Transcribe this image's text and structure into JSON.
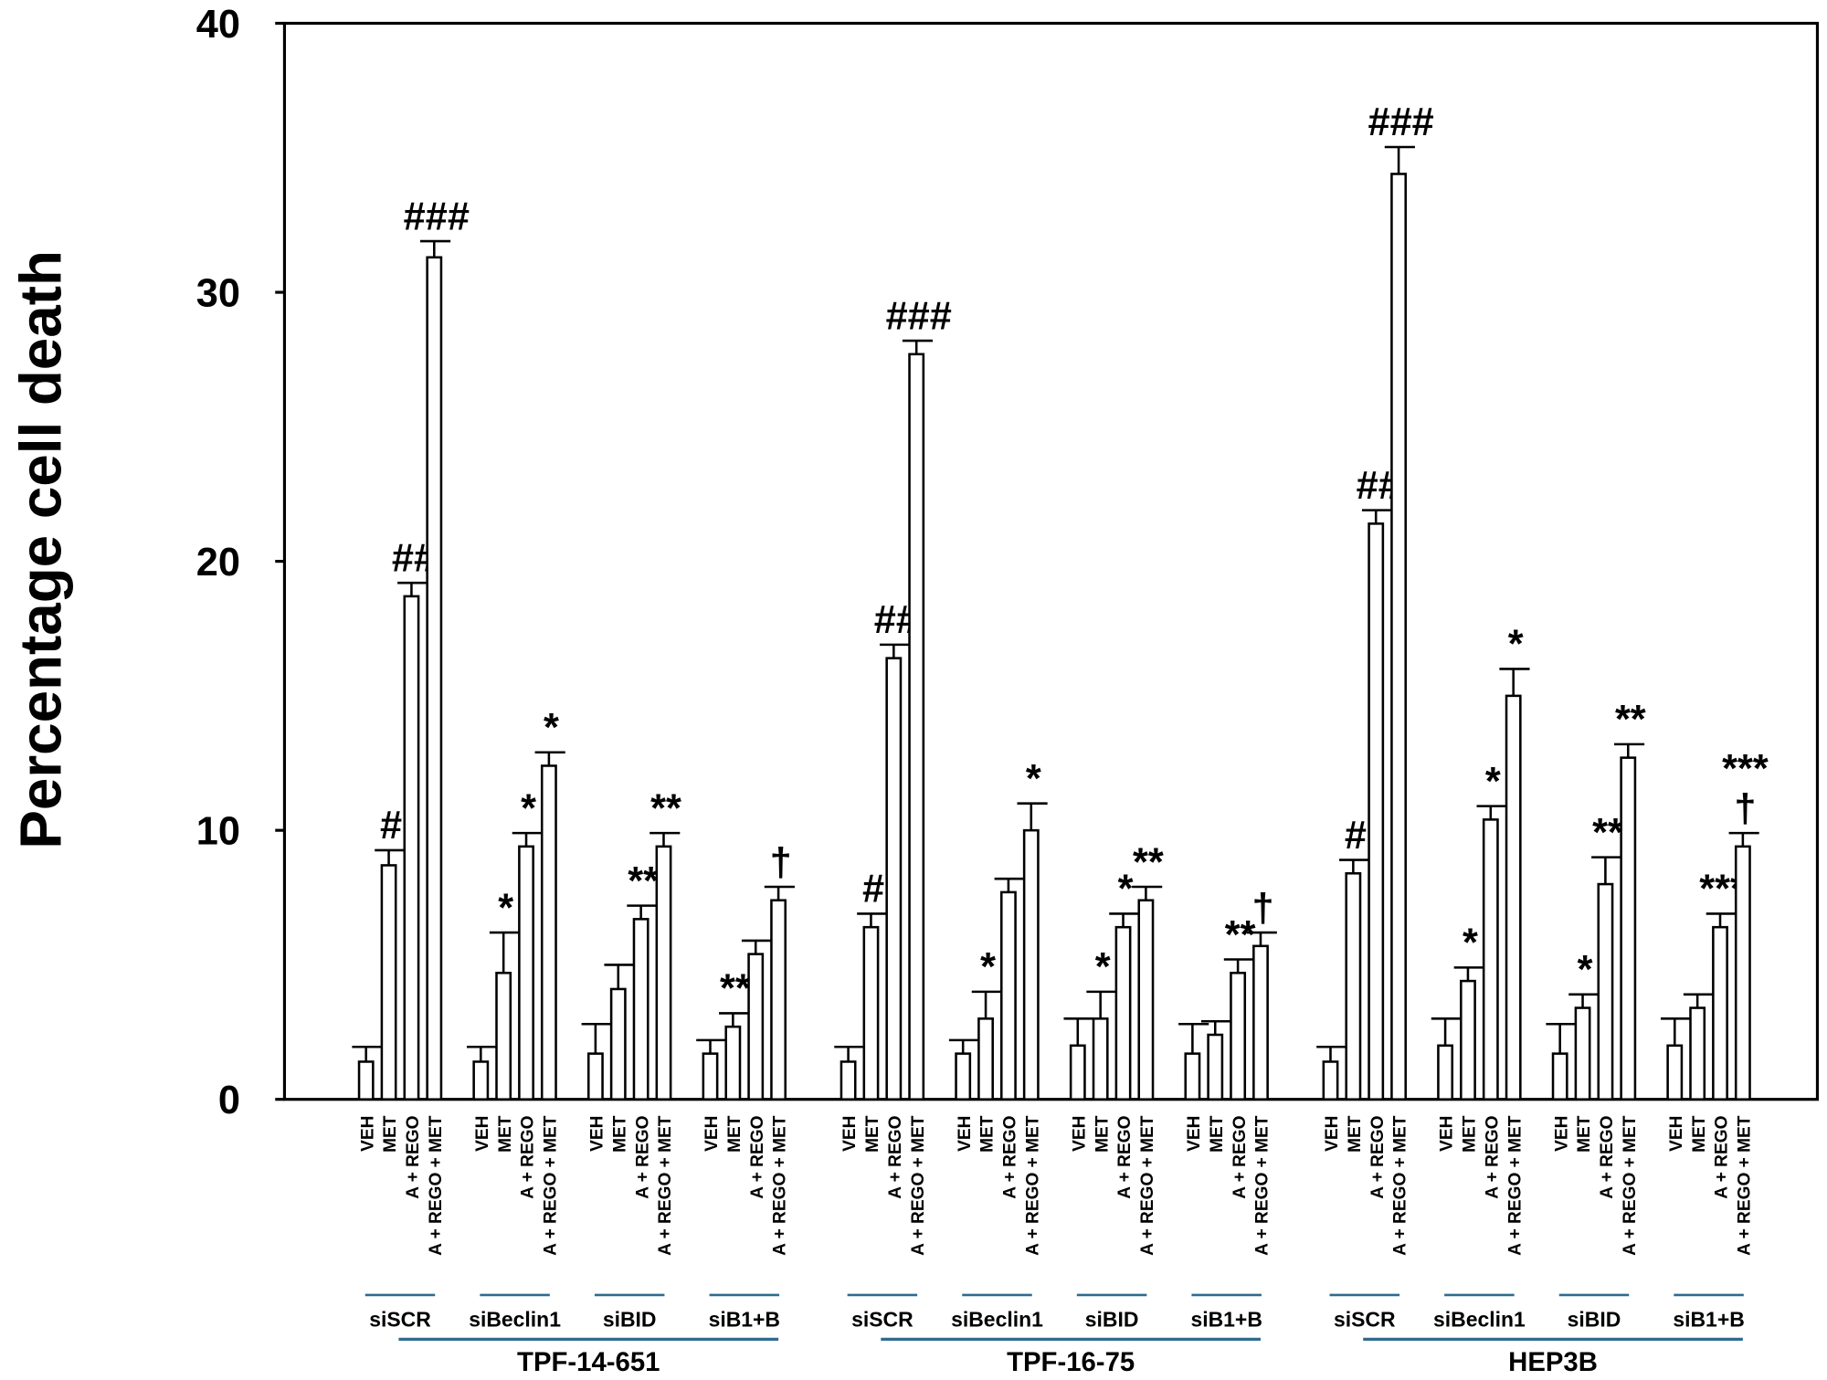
{
  "chart_data": {
    "type": "bar",
    "ylabel": "Percentage cell death",
    "ylim": [
      0,
      40
    ],
    "yticks": [
      0,
      10,
      20,
      30,
      40
    ],
    "grid": false,
    "treatments": [
      "VEH",
      "MET",
      "A + REGO",
      "A + REGO + MET"
    ],
    "line_color": "#2e6b8f",
    "cell_lines": [
      {
        "name": "TPF-14-651",
        "groups": [
          {
            "name": "siSCR",
            "values": [
              1.4,
              8.7,
              18.7,
              31.3
            ],
            "err_top": [
              1.95,
              9.26,
              19.2,
              31.9
            ],
            "annotations": [
              "",
              "#",
              "##",
              "###"
            ]
          },
          {
            "name": "siBeclin1",
            "values": [
              1.4,
              4.7,
              9.4,
              12.4
            ],
            "err_top": [
              1.95,
              6.2,
              9.9,
              12.9
            ],
            "annotations": [
              "",
              "*",
              "*",
              "*"
            ]
          },
          {
            "name": "siBID",
            "values": [
              1.7,
              4.1,
              6.7,
              9.4
            ],
            "err_top": [
              2.8,
              5.0,
              7.2,
              9.9
            ],
            "annotations": [
              "",
              "",
              "**",
              "**"
            ]
          },
          {
            "name": "siB1+B",
            "values": [
              1.7,
              2.7,
              5.4,
              7.4
            ],
            "err_top": [
              2.2,
              3.2,
              5.9,
              7.9
            ],
            "annotations": [
              "",
              "**",
              "",
              "†"
            ]
          }
        ]
      },
      {
        "name": "TPF-16-75",
        "groups": [
          {
            "name": "siSCR",
            "values": [
              1.4,
              6.4,
              16.4,
              27.7
            ],
            "err_top": [
              1.95,
              6.9,
              16.9,
              28.2
            ],
            "annotations": [
              "",
              "#",
              "##",
              "###"
            ]
          },
          {
            "name": "siBeclin1",
            "values": [
              1.7,
              3.0,
              7.7,
              10.0
            ],
            "err_top": [
              2.2,
              4.0,
              8.2,
              11.0
            ],
            "annotations": [
              "",
              "*",
              "",
              "*"
            ]
          },
          {
            "name": "siBID",
            "values": [
              2.0,
              3.0,
              6.4,
              7.4
            ],
            "err_top": [
              3.0,
              4.0,
              6.9,
              7.9
            ],
            "annotations": [
              "",
              "*",
              "*",
              "**"
            ]
          },
          {
            "name": "siB1+B",
            "values": [
              1.7,
              2.4,
              4.7,
              5.7
            ],
            "err_top": [
              2.8,
              2.9,
              5.2,
              6.2
            ],
            "annotations": [
              "",
              "",
              "**",
              "†"
            ]
          }
        ]
      },
      {
        "name": "HEP3B",
        "groups": [
          {
            "name": "siSCR",
            "values": [
              1.4,
              8.4,
              21.4,
              34.4
            ],
            "err_top": [
              1.95,
              8.9,
              21.9,
              35.4
            ],
            "annotations": [
              "",
              "#",
              "##",
              "###"
            ]
          },
          {
            "name": "siBeclin1",
            "values": [
              2.0,
              4.4,
              10.4,
              15.0
            ],
            "err_top": [
              3.0,
              4.9,
              10.9,
              16.0
            ],
            "annotations": [
              "",
              "*",
              "*",
              "*"
            ]
          },
          {
            "name": "siBID",
            "values": [
              1.7,
              3.4,
              8.0,
              12.7
            ],
            "err_top": [
              2.8,
              3.9,
              9.0,
              13.2
            ],
            "annotations": [
              "",
              "*",
              "**",
              "**"
            ]
          },
          {
            "name": "siB1+B",
            "values": [
              2.0,
              3.4,
              6.4,
              9.4
            ],
            "err_top": [
              3.0,
              3.9,
              6.9,
              9.9
            ],
            "annotations": [
              "",
              "",
              "***",
              "***\n†"
            ]
          }
        ]
      }
    ]
  }
}
